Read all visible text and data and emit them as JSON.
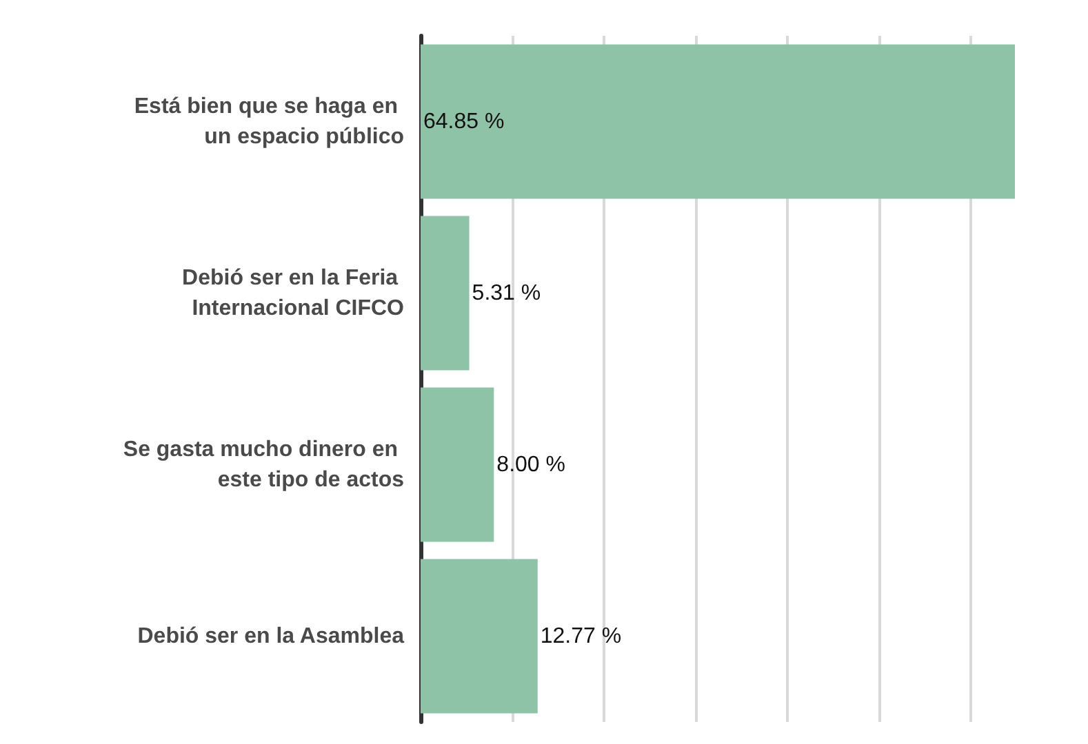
{
  "chart_data": {
    "type": "bar",
    "orientation": "horizontal",
    "categories": [
      "Está bien que se haga en un espacio público",
      "Debió ser en la Feria Internacional CIFCO",
      "Se gasta mucho dinero en este tipo de actos",
      "Debió ser en la Asamblea"
    ],
    "values": [
      64.85,
      5.31,
      8.0,
      12.77
    ],
    "value_labels": [
      "64.85 %",
      "5.31 %",
      "8.00 %",
      "12.77 %"
    ],
    "color": "#8fc3a7",
    "xlim": [
      0,
      65
    ],
    "xticks": [
      {
        "value": 0,
        "label": null
      },
      {
        "value": 10,
        "label": null
      },
      {
        "value": 20,
        "label": null
      },
      {
        "value": 30,
        "label": null
      },
      {
        "value": 40,
        "label": null
      },
      {
        "value": 50,
        "label": null
      },
      {
        "value": 60,
        "label": null
      }
    ],
    "grid": "x",
    "tick_labels": "y"
  }
}
